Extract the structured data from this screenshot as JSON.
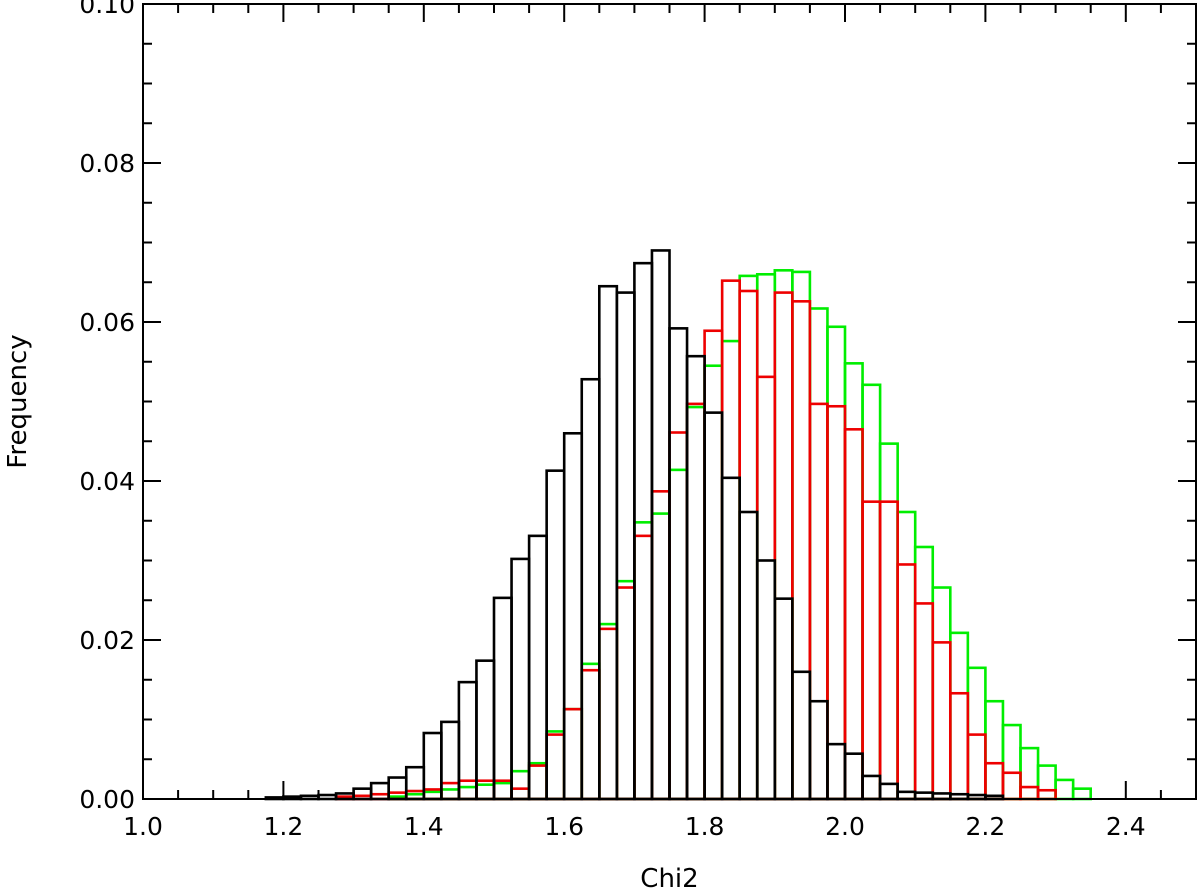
{
  "chart_data": {
    "type": "bar",
    "subtype": "step-histogram",
    "title": "",
    "xlabel": "Chi2",
    "ylabel": "Frequency",
    "xlim": [
      1.0,
      2.5
    ],
    "ylim": [
      0.0,
      0.1
    ],
    "xticks": [
      "1.0",
      "1.2",
      "1.4",
      "1.6",
      "1.8",
      "2.0",
      "2.2",
      "2.4"
    ],
    "yticks": [
      "0.00",
      "0.02",
      "0.04",
      "0.06",
      "0.08",
      "0.10"
    ],
    "xtick_values": [
      1.0,
      1.2,
      1.4,
      1.6,
      1.8,
      2.0,
      2.2,
      2.4
    ],
    "ytick_values": [
      0.0,
      0.02,
      0.04,
      0.06,
      0.08,
      0.1
    ],
    "bin_width": 0.025,
    "grid": false,
    "legend": "none",
    "series": [
      {
        "color": "#00ee00",
        "x_start": 1.35,
        "values": [
          0.0003,
          0.0006,
          0.0009,
          0.0012,
          0.0015,
          0.0018,
          0.002,
          0.0035,
          0.0045,
          0.0085,
          0.0113,
          0.017,
          0.022,
          0.0274,
          0.0348,
          0.0359,
          0.0414,
          0.0493,
          0.0545,
          0.0576,
          0.0658,
          0.066,
          0.0665,
          0.0663,
          0.0617,
          0.0594,
          0.0548,
          0.0521,
          0.0447,
          0.0361,
          0.0317,
          0.0266,
          0.0209,
          0.0165,
          0.0123,
          0.0093,
          0.0064,
          0.0042,
          0.0024,
          0.0013
        ]
      },
      {
        "color": "#ee0000",
        "x_start": 1.275,
        "values": [
          0.0003,
          0.0004,
          0.0006,
          0.0008,
          0.001,
          0.0012,
          0.002,
          0.0023,
          0.0023,
          0.0023,
          0.0013,
          0.0042,
          0.0081,
          0.0113,
          0.0162,
          0.0214,
          0.0266,
          0.0331,
          0.0387,
          0.0461,
          0.0497,
          0.0589,
          0.0652,
          0.0639,
          0.0531,
          0.0637,
          0.0626,
          0.0497,
          0.0494,
          0.0465,
          0.0374,
          0.0374,
          0.0295,
          0.0246,
          0.0197,
          0.0133,
          0.0081,
          0.0045,
          0.0033,
          0.0015,
          0.0011
        ]
      },
      {
        "color": "#000000",
        "x_start": 1.175,
        "values": [
          0.0002,
          0.0003,
          0.0004,
          0.0005,
          0.0007,
          0.0013,
          0.002,
          0.0027,
          0.004,
          0.0083,
          0.0097,
          0.0147,
          0.0174,
          0.0253,
          0.0302,
          0.0331,
          0.0413,
          0.046,
          0.0528,
          0.0645,
          0.0637,
          0.0674,
          0.069,
          0.0592,
          0.0557,
          0.0486,
          0.0404,
          0.0361,
          0.03,
          0.0252,
          0.016,
          0.0123,
          0.0069,
          0.0057,
          0.0029,
          0.0019,
          0.0009,
          0.0008,
          0.0007,
          0.0006,
          0.0005,
          0.0004
        ]
      }
    ]
  }
}
